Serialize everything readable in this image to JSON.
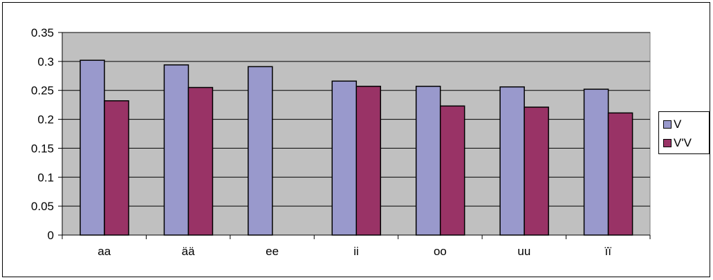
{
  "chart_data": {
    "type": "bar",
    "categories": [
      "aa",
      "ää",
      "ee",
      "ii",
      "oo",
      "uu",
      "ïï"
    ],
    "series": [
      {
        "name": "V",
        "color": "#9999cc",
        "values": [
          0.302,
          0.294,
          0.291,
          0.266,
          0.257,
          0.256,
          0.252
        ]
      },
      {
        "name": "V'V",
        "color": "#993366",
        "values": [
          0.232,
          0.255,
          null,
          0.257,
          0.223,
          0.221,
          0.211
        ]
      }
    ],
    "ylim": [
      0,
      0.35
    ],
    "yticks": [
      "0",
      "0.05",
      "0.1",
      "0.15",
      "0.2",
      "0.25",
      "0.3",
      "0.35"
    ],
    "title": "",
    "xlabel": "",
    "ylabel": "",
    "grid": true,
    "legend_position": "right",
    "plot_background": "#c0c0c0"
  }
}
